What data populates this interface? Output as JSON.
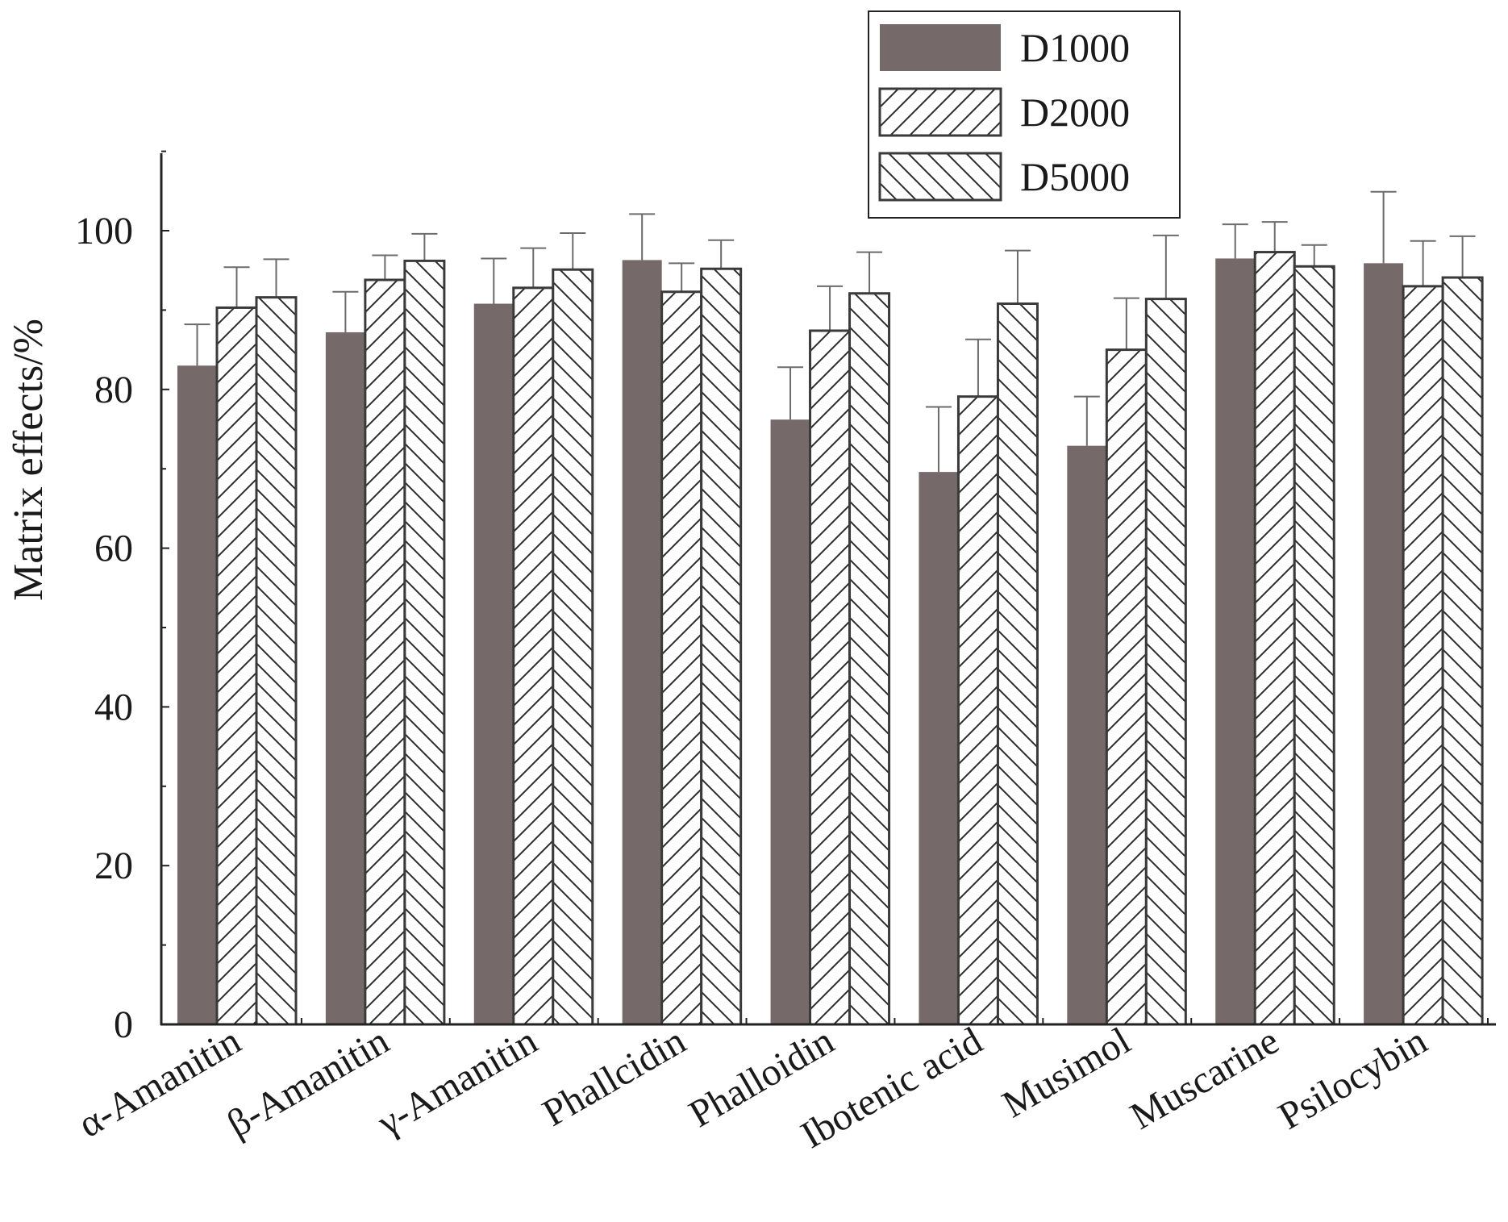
{
  "chart_data": {
    "type": "bar",
    "ylabel": "Matrix effects/%",
    "xlabel": "",
    "ylim": [
      0,
      110
    ],
    "yticks": [
      0,
      20,
      40,
      60,
      80,
      100
    ],
    "ytick_labels": [
      "0",
      "20",
      "40",
      "60",
      "80",
      "100"
    ],
    "legend_position": "top-right",
    "grid": false,
    "categories": [
      "α-Amanitin",
      "β-Amanitin",
      "γ-Amanitin",
      "Phallcidin",
      "Phalloidin",
      "Ibotenic acid",
      "Musimol",
      "Muscarine",
      "Psilocybin"
    ],
    "series": [
      {
        "name": "D1000",
        "fill": "solid",
        "color": "#756a69",
        "values": [
          83.0,
          87.2,
          90.8,
          96.3,
          76.2,
          69.6,
          72.9,
          96.5,
          95.9
        ],
        "errors": [
          5.2,
          5.1,
          5.7,
          5.8,
          6.6,
          8.2,
          6.2,
          4.3,
          9.0
        ]
      },
      {
        "name": "D2000",
        "fill": "hatch-forward",
        "color": "#ffffff",
        "values": [
          90.3,
          93.8,
          92.8,
          92.3,
          87.4,
          79.1,
          85.0,
          97.3,
          93.0
        ],
        "errors": [
          5.1,
          3.1,
          5.0,
          3.6,
          5.6,
          7.2,
          6.5,
          3.8,
          5.7
        ]
      },
      {
        "name": "D5000",
        "fill": "hatch-backward",
        "color": "#ffffff",
        "values": [
          91.6,
          96.2,
          95.1,
          95.2,
          92.1,
          90.8,
          91.4,
          95.5,
          94.1
        ],
        "errors": [
          4.8,
          3.4,
          4.6,
          3.6,
          5.2,
          6.7,
          8.0,
          2.7,
          5.2
        ]
      }
    ]
  }
}
